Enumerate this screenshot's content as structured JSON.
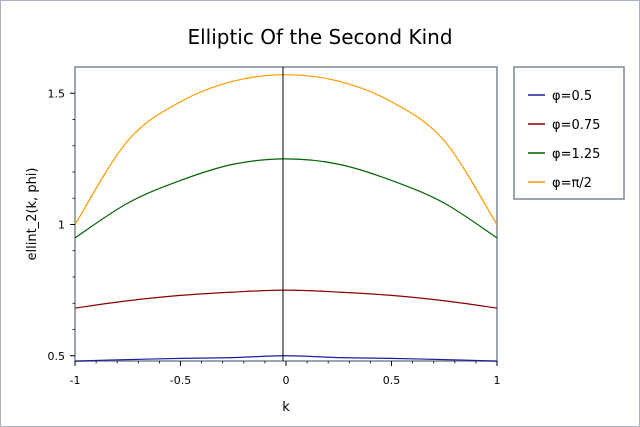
{
  "chart_data": {
    "type": "line",
    "title": "Elliptic Of the Second Kind",
    "xlabel": "k",
    "ylabel": "ellint_2(k, phi)",
    "xlim": [
      -1,
      1
    ],
    "ylim": [
      0.48,
      1.6
    ],
    "x_ticks": [
      {
        "value": -1,
        "label": "-1"
      },
      {
        "value": -0.5,
        "label": "-0.5"
      },
      {
        "value": 0,
        "label": "0"
      },
      {
        "value": 0.5,
        "label": "0.5"
      },
      {
        "value": 1,
        "label": "1"
      }
    ],
    "y_ticks": [
      {
        "value": 0.5,
        "label": "0.5"
      },
      {
        "value": 1,
        "label": "1"
      },
      {
        "value": 1.5,
        "label": "1.5"
      }
    ],
    "grid": false,
    "legend_position": "right",
    "x": [
      -1,
      -0.75,
      -0.5,
      -0.25,
      0,
      0.25,
      0.5,
      0.75,
      1
    ],
    "series": [
      {
        "name": "φ=0.5",
        "color": "#1f1f9e",
        "values": [
          0.4794,
          0.4853,
          0.49,
          0.493,
          0.5,
          0.493,
          0.49,
          0.4853,
          0.4794
        ]
      },
      {
        "name": "φ=0.75",
        "color": "#8b0000",
        "values": [
          0.6816,
          0.7094,
          0.7299,
          0.7425,
          0.75,
          0.7425,
          0.7299,
          0.7094,
          0.6816
        ]
      },
      {
        "name": "φ=1.25",
        "color": "#006400",
        "values": [
          0.949,
          1.0814,
          1.168,
          1.2296,
          1.25,
          1.2296,
          1.168,
          1.0814,
          0.949
        ]
      },
      {
        "name": "φ=π/2",
        "color": "#ff9a00",
        "values": [
          1.0,
          1.3191,
          1.4675,
          1.5459,
          1.5708,
          1.5459,
          1.4675,
          1.3191,
          1.0
        ]
      }
    ]
  }
}
